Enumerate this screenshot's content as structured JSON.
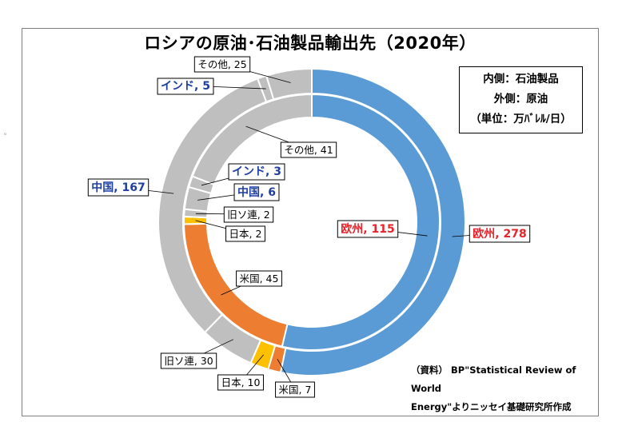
{
  "chart_data": {
    "type": "pie",
    "title": "ロシアの原油･石油製品輸出先（2020年）",
    "legend_lines": [
      "内側：石油製品",
      "外側：原油",
      "（単位：万ﾊﾞﾚﾙ/日）"
    ],
    "source_lines": [
      "（資料） BP\"Statistical Review of World",
      "Energy\"よりニッセイ基礎研究所作成"
    ],
    "series": [
      {
        "name": "原油",
        "ring": "outer",
        "slices": [
          {
            "label": "欧州",
            "value": 278,
            "color": "#5b9bd5",
            "text": "欧州, 278",
            "style": "red"
          },
          {
            "label": "米国",
            "value": 7,
            "color": "#ed7d31",
            "text": "米国, 7",
            "style": "normal"
          },
          {
            "label": "日本",
            "value": 10,
            "color": "#ffc000",
            "text": "日本, 10",
            "style": "normal"
          },
          {
            "label": "旧ソ連",
            "value": 30,
            "color": "#bfbfbf",
            "text": "旧ソ連, 30",
            "style": "normal"
          },
          {
            "label": "中国",
            "value": 167,
            "color": "#bfbfbf",
            "text": "中国, 167",
            "style": "blue"
          },
          {
            "label": "インド",
            "value": 5,
            "color": "#bfbfbf",
            "text": "インド, 5",
            "style": "blue"
          },
          {
            "label": "その他",
            "value": 25,
            "color": "#bfbfbf",
            "text": "その他, 25",
            "style": "normal"
          }
        ]
      },
      {
        "name": "石油製品",
        "ring": "inner",
        "slices": [
          {
            "label": "欧州",
            "value": 115,
            "color": "#5b9bd5",
            "text": "欧州, 115",
            "style": "red"
          },
          {
            "label": "米国",
            "value": 45,
            "color": "#ed7d31",
            "text": "米国, 45",
            "style": "normal"
          },
          {
            "label": "日本",
            "value": 2,
            "color": "#ffc000",
            "text": "日本, 2",
            "style": "normal"
          },
          {
            "label": "旧ソ連",
            "value": 2,
            "color": "#bfbfbf",
            "text": "旧ソ連, 2",
            "style": "normal"
          },
          {
            "label": "中国",
            "value": 6,
            "color": "#bfbfbf",
            "text": "中国, 6",
            "style": "blue"
          },
          {
            "label": "インド",
            "value": 3,
            "color": "#bfbfbf",
            "text": "インド, 3",
            "style": "blue"
          },
          {
            "label": "その他",
            "value": 41,
            "color": "#bfbfbf",
            "text": "その他, 41",
            "style": "normal"
          }
        ]
      }
    ]
  }
}
